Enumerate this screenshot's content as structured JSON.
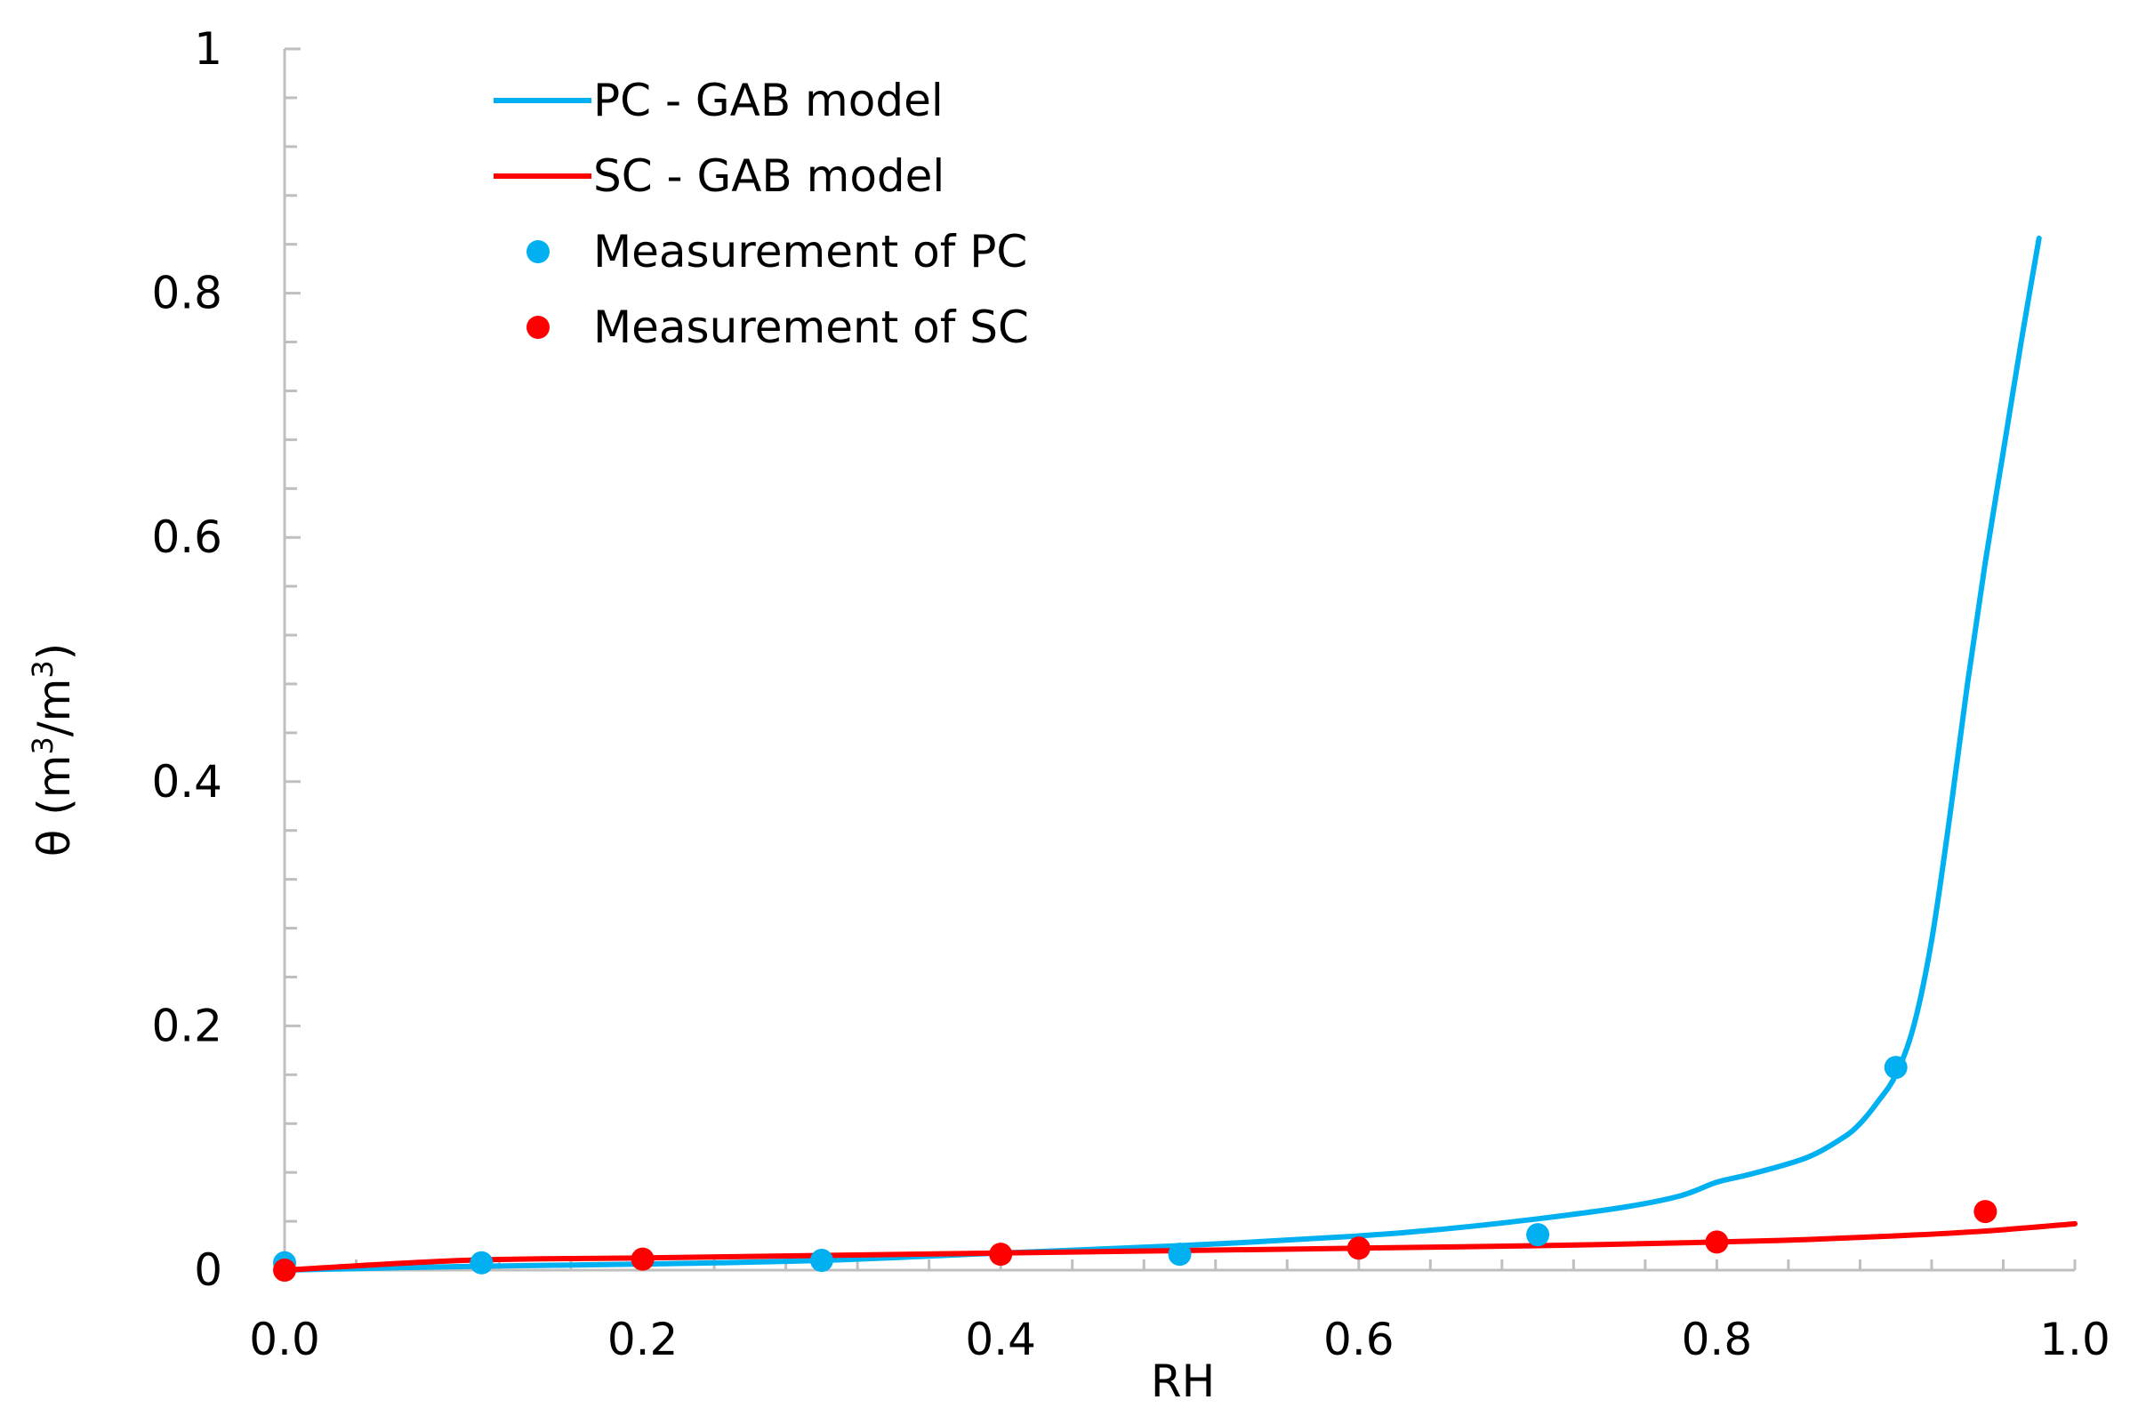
{
  "chart_data": {
    "type": "scatter",
    "title": "",
    "xlabel": "RH",
    "ylabel": {
      "base": "θ (m",
      "sup1": "3",
      "mid": "/m",
      "sup2": "3",
      "end": ")"
    },
    "xlim": [
      0,
      1
    ],
    "ylim": [
      0,
      1
    ],
    "x_ticks": [
      0.0,
      0.2,
      0.4,
      0.6,
      0.8,
      1.0
    ],
    "x_tick_labels": [
      "0.0",
      "0.2",
      "0.4",
      "0.6",
      "0.8",
      "1.0"
    ],
    "y_ticks": [
      0,
      0.2,
      0.4,
      0.6,
      0.8,
      1
    ],
    "y_tick_labels": [
      "0",
      "0.2",
      "0.4",
      "0.6",
      "0.8",
      "1"
    ],
    "grid": false,
    "legend_position": "top-left",
    "series": [
      {
        "name": "PC - GAB model",
        "kind": "line",
        "color": "#00B0F0",
        "x": [
          0.0,
          0.1,
          0.2,
          0.3,
          0.4,
          0.5,
          0.6,
          0.65,
          0.7,
          0.75,
          0.78,
          0.8,
          0.82,
          0.85,
          0.87,
          0.88,
          0.89,
          0.9,
          0.91,
          0.92,
          0.93,
          0.94,
          0.95,
          0.96,
          0.97,
          0.98
        ],
        "y": [
          0.0,
          0.003,
          0.005,
          0.008,
          0.014,
          0.02,
          0.028,
          0.034,
          0.042,
          0.052,
          0.061,
          0.072,
          0.079,
          0.092,
          0.108,
          0.12,
          0.138,
          0.16,
          0.2,
          0.27,
          0.37,
          0.48,
          0.58,
          0.67,
          0.76,
          0.845
        ]
      },
      {
        "name": "SC - GAB model",
        "kind": "line",
        "color": "#FF0000",
        "x": [
          0.0,
          0.1,
          0.2,
          0.3,
          0.4,
          0.5,
          0.6,
          0.7,
          0.8,
          0.85,
          0.9,
          0.95,
          1.0
        ],
        "y": [
          0.0,
          0.008,
          0.01,
          0.012,
          0.014,
          0.016,
          0.018,
          0.02,
          0.023,
          0.025,
          0.028,
          0.032,
          0.038
        ]
      },
      {
        "name": "Measurement of PC",
        "kind": "scatter",
        "color": "#00B0F0",
        "x": [
          0.0,
          0.11,
          0.3,
          0.5,
          0.7,
          0.9
        ],
        "y": [
          0.006,
          0.006,
          0.008,
          0.013,
          0.029,
          0.166
        ]
      },
      {
        "name": "Measurement of SC",
        "kind": "scatter",
        "color": "#FF0000",
        "x": [
          0.0,
          0.2,
          0.4,
          0.6,
          0.8,
          0.95
        ],
        "y": [
          0.0,
          0.009,
          0.013,
          0.018,
          0.023,
          0.048
        ]
      }
    ]
  }
}
